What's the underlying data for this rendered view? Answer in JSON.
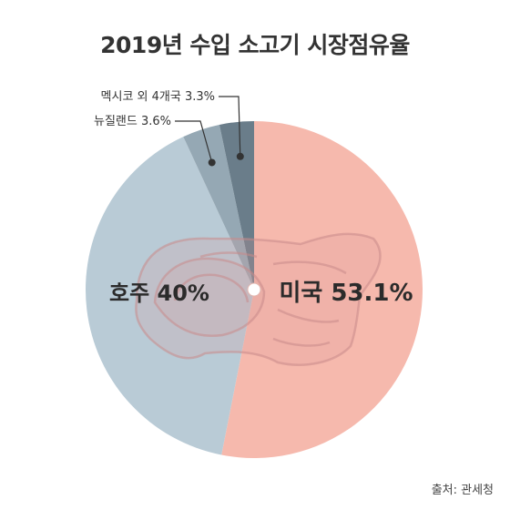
{
  "title": "2019년 수입 소고기 시장점유율",
  "source": "출처: 관세청",
  "chart_data": {
    "type": "pie",
    "title": "2019년 수입 소고기 시장점유율",
    "slices": [
      {
        "name": "미국",
        "value": 53.1,
        "label": "미국 53.1%",
        "color": "#f6b9ad"
      },
      {
        "name": "호주",
        "value": 40,
        "label": "호주 40%",
        "color": "#b9cbd6"
      },
      {
        "name": "뉴질랜드",
        "value": 3.6,
        "label": "뉴질랜드 3.6%",
        "color": "#95a8b4"
      },
      {
        "name": "멕시코 외 4개국",
        "value": 3.3,
        "label": "멕시코 외 4개국 3.3%",
        "color": "#6a7d8a"
      }
    ],
    "start_angle": "12 o'clock",
    "direction": "clockwise"
  }
}
